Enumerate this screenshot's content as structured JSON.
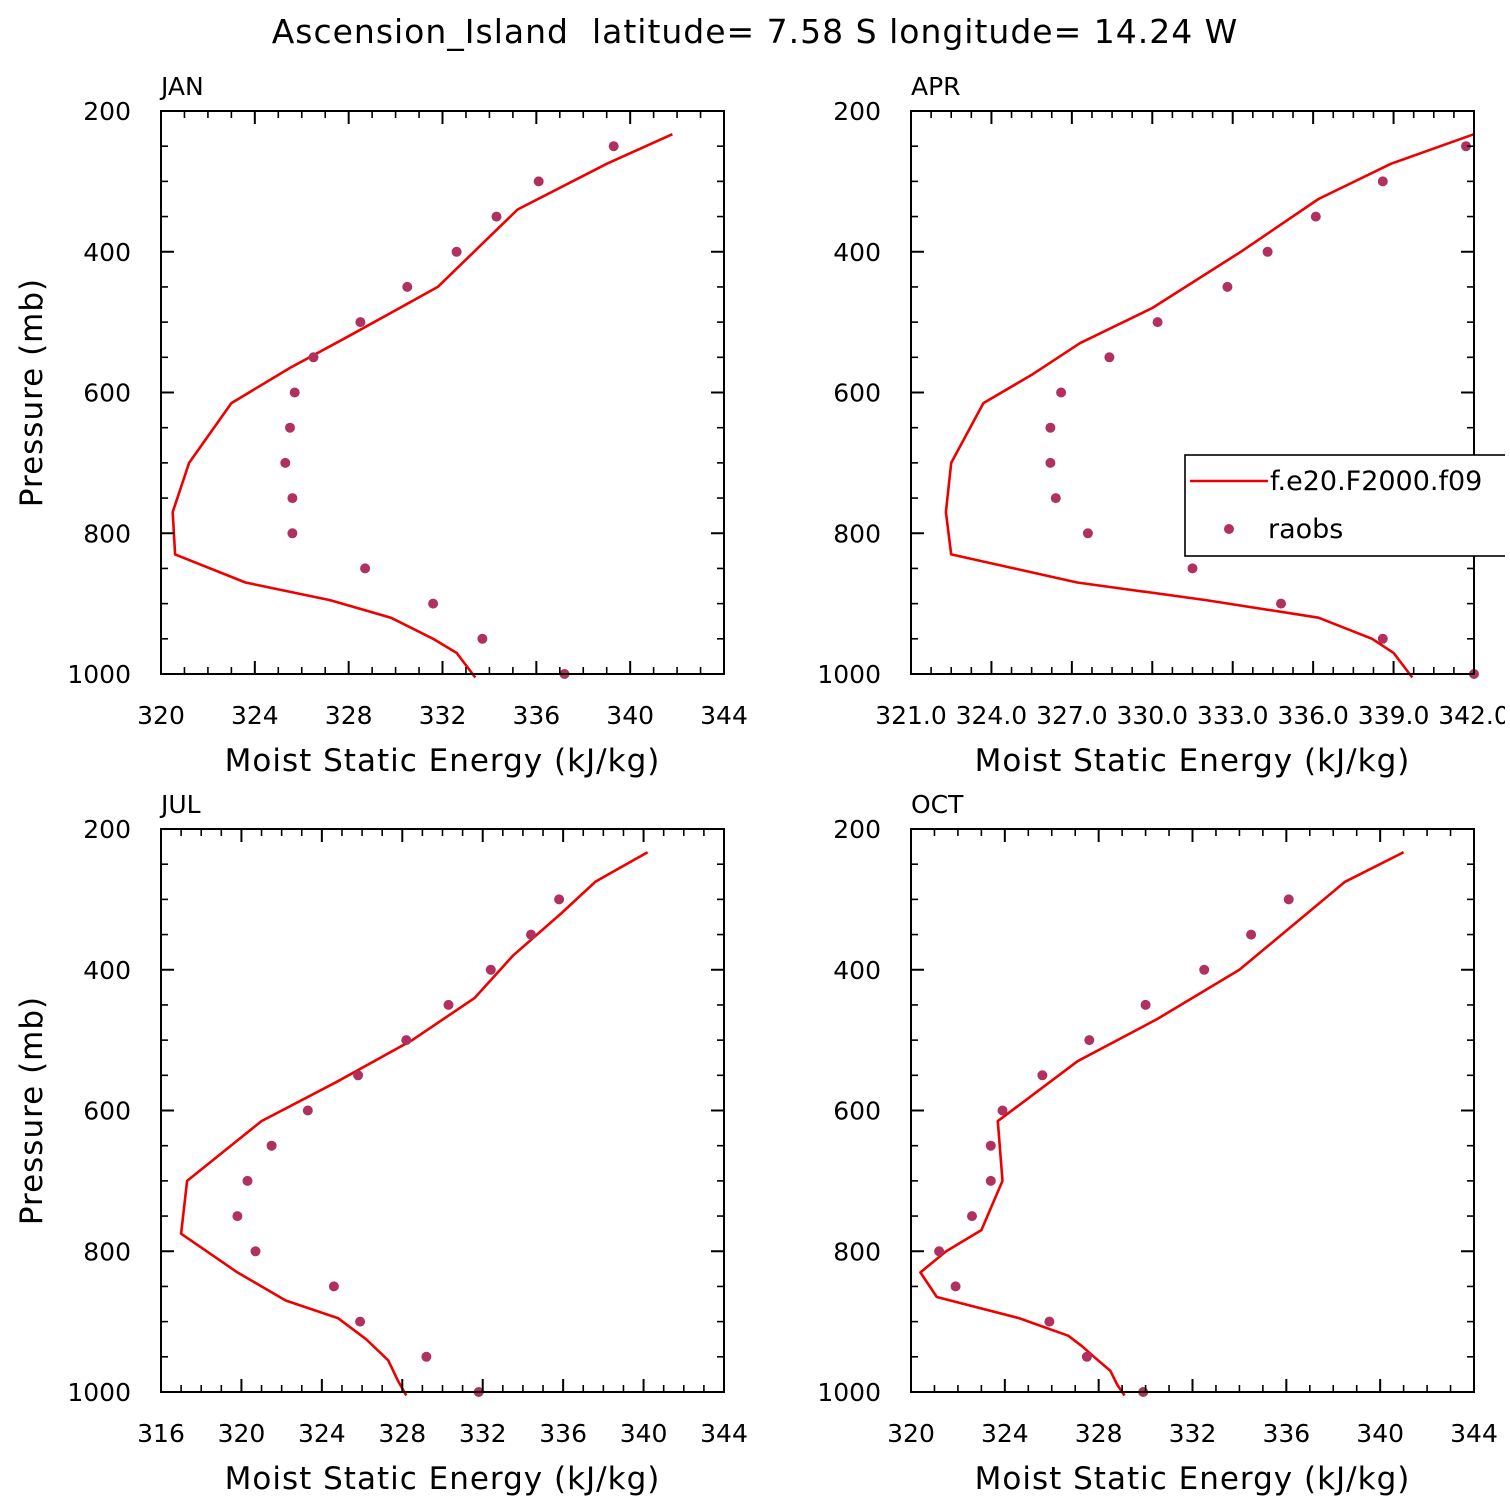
{
  "title": "Ascension_Island  latitude= 7.58 S longitude= 14.24 W",
  "colors": {
    "model": "#ee0000",
    "raobs": "#b03060",
    "axis": "#000000"
  },
  "chart_data": [
    {
      "type": "line",
      "panel": "JAN",
      "xlabel": "Moist Static Energy (kJ/kg)",
      "ylabel": "Pressure (mb)",
      "xlim": [
        320,
        344
      ],
      "ylim": [
        1000,
        200
      ],
      "xticks": [
        320,
        324,
        328,
        332,
        336,
        340,
        344
      ],
      "xtick_labels": [
        "320",
        "324",
        "328",
        "332",
        "336",
        "340",
        "344"
      ],
      "yticks": [
        200,
        400,
        600,
        800,
        1000
      ],
      "ytick_labels": [
        "200",
        "400",
        "600",
        "800",
        "1000"
      ],
      "legend": false,
      "series": [
        {
          "type": "line",
          "color": "#ee0000",
          "x": [
            333.4,
            332.6,
            331.6,
            329.8,
            327.2,
            323.6,
            320.6,
            320.5,
            321.2,
            323.0,
            325.5,
            328.0,
            331.8,
            335.2,
            339.0,
            341.8
          ],
          "y": [
            1005,
            970,
            950,
            920,
            895,
            870,
            830,
            770,
            700,
            615,
            565,
            520,
            450,
            340,
            275,
            233
          ]
        },
        {
          "type": "scatter",
          "color": "#b03060",
          "x": [
            337.2,
            333.7,
            331.6,
            328.7,
            325.6,
            325.6,
            325.3,
            325.5,
            325.7,
            326.5,
            328.5,
            330.5,
            332.6,
            334.3,
            336.1,
            339.3
          ],
          "y": [
            1000,
            950,
            900,
            850,
            800,
            750,
            700,
            650,
            600,
            550,
            500,
            450,
            400,
            350,
            300,
            250
          ]
        }
      ]
    },
    {
      "type": "line",
      "panel": "APR",
      "xlabel": "Moist Static Energy (kJ/kg)",
      "ylabel": "",
      "xlim": [
        321,
        342
      ],
      "ylim": [
        1000,
        200
      ],
      "xticks": [
        321,
        324,
        327,
        330,
        333,
        336,
        339,
        342
      ],
      "xtick_labels": [
        "321.0",
        "324.0",
        "327.0",
        "330.0",
        "333.0",
        "336.0",
        "339.0",
        "342.0"
      ],
      "yticks": [
        200,
        400,
        600,
        800,
        1000
      ],
      "ytick_labels": [
        "200",
        "400",
        "600",
        "800",
        "1000"
      ],
      "legend": true,
      "legend_position": "right",
      "legend_entries": [
        "f.e20.F2000.f09",
        "raobs"
      ],
      "series": [
        {
          "name": "f.e20.F2000.f09",
          "type": "line",
          "color": "#ee0000",
          "x": [
            339.7,
            339.0,
            338.2,
            336.2,
            332.0,
            327.2,
            322.5,
            322.3,
            322.5,
            323.7,
            325.5,
            327.3,
            330.0,
            333.3,
            336.2,
            338.9,
            342.0
          ],
          "y": [
            1005,
            970,
            950,
            920,
            895,
            870,
            830,
            770,
            700,
            615,
            575,
            530,
            480,
            400,
            325,
            275,
            233
          ]
        },
        {
          "name": "raobs",
          "type": "scatter",
          "color": "#b03060",
          "x": [
            342.0,
            338.6,
            334.8,
            331.5,
            327.6,
            326.4,
            326.2,
            326.2,
            326.6,
            328.4,
            330.2,
            332.8,
            334.3,
            336.1,
            338.6,
            341.7
          ],
          "y": [
            1000,
            950,
            900,
            850,
            800,
            750,
            700,
            650,
            600,
            550,
            500,
            450,
            400,
            350,
            300,
            250
          ]
        }
      ]
    },
    {
      "type": "line",
      "panel": "JUL",
      "xlabel": "Moist Static Energy (kJ/kg)",
      "ylabel": "Pressure (mb)",
      "xlim": [
        316,
        344
      ],
      "ylim": [
        1000,
        200
      ],
      "xticks": [
        316,
        320,
        324,
        328,
        332,
        336,
        340,
        344
      ],
      "xtick_labels": [
        "316",
        "320",
        "324",
        "328",
        "332",
        "336",
        "340",
        "344"
      ],
      "yticks": [
        200,
        400,
        600,
        800,
        1000
      ],
      "ytick_labels": [
        "200",
        "400",
        "600",
        "800",
        "1000"
      ],
      "legend": false,
      "series": [
        {
          "type": "line",
          "color": "#ee0000",
          "x": [
            328.2,
            327.8,
            327.3,
            326.2,
            324.8,
            322.2,
            319.8,
            317.0,
            317.3,
            321.0,
            324.7,
            328.5,
            331.6,
            333.5,
            335.9,
            337.6,
            340.2
          ],
          "y": [
            1005,
            985,
            955,
            925,
            895,
            870,
            830,
            775,
            700,
            615,
            560,
            500,
            440,
            380,
            320,
            275,
            233
          ]
        },
        {
          "type": "scatter",
          "color": "#b03060",
          "x": [
            331.8,
            329.2,
            325.9,
            324.6,
            320.7,
            319.8,
            320.3,
            321.5,
            323.3,
            325.8,
            328.2,
            330.3,
            332.4,
            334.4,
            335.8
          ],
          "y": [
            1000,
            950,
            900,
            850,
            800,
            750,
            700,
            650,
            600,
            550,
            500,
            450,
            400,
            350,
            300
          ]
        }
      ]
    },
    {
      "type": "line",
      "panel": "OCT",
      "xlabel": "Moist Static Energy (kJ/kg)",
      "ylabel": "",
      "xlim": [
        320,
        344
      ],
      "ylim": [
        1000,
        200
      ],
      "xticks": [
        320,
        324,
        328,
        332,
        336,
        340,
        344
      ],
      "xtick_labels": [
        "320",
        "324",
        "328",
        "332",
        "336",
        "340",
        "344"
      ],
      "yticks": [
        200,
        400,
        600,
        800,
        1000
      ],
      "ytick_labels": [
        "200",
        "400",
        "600",
        "800",
        "1000"
      ],
      "legend": false,
      "series": [
        {
          "type": "line",
          "color": "#ee0000",
          "x": [
            329.1,
            328.8,
            328.5,
            327.8,
            327.3,
            326.7,
            324.6,
            321.1,
            320.4,
            321.5,
            323.0,
            323.9,
            323.7,
            327.1,
            330.5,
            334.0,
            338.5,
            341.0
          ],
          "y": [
            1005,
            990,
            970,
            950,
            935,
            920,
            895,
            865,
            830,
            800,
            770,
            700,
            615,
            530,
            470,
            400,
            275,
            233
          ]
        },
        {
          "type": "scatter",
          "color": "#b03060",
          "x": [
            329.9,
            327.5,
            325.9,
            321.9,
            321.2,
            322.6,
            323.4,
            323.4,
            323.9,
            325.6,
            327.6,
            330.0,
            332.5,
            334.5,
            336.1
          ],
          "y": [
            1000,
            950,
            900,
            850,
            800,
            750,
            700,
            650,
            600,
            550,
            500,
            450,
            400,
            350,
            300
          ]
        }
      ]
    }
  ]
}
